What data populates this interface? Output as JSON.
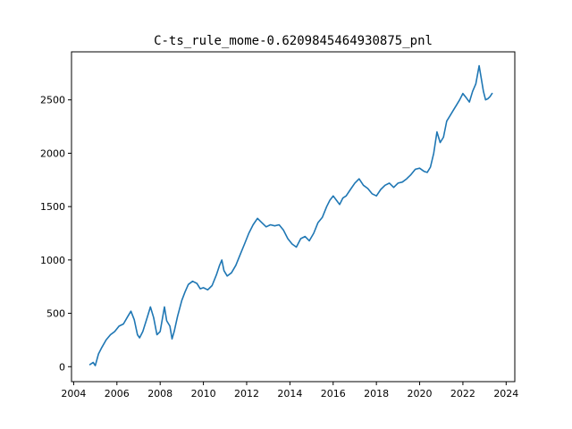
{
  "chart_data": {
    "type": "line",
    "title": "C-ts_rule_mome-0.6209845464930875_pnl",
    "xlabel": "",
    "ylabel": "",
    "grid": false,
    "xlim": [
      2003.9,
      2024.4
    ],
    "ylim": [
      -140,
      2950
    ],
    "x_ticks": [
      2004,
      2006,
      2008,
      2010,
      2012,
      2014,
      2016,
      2018,
      2020,
      2022,
      2024
    ],
    "y_ticks": [
      0,
      500,
      1000,
      1500,
      2000,
      2500
    ],
    "series": [
      {
        "color": "#1f77b4",
        "x": [
          2004.75,
          2004.9,
          2005.0,
          2005.15,
          2005.3,
          2005.5,
          2005.7,
          2005.9,
          2006.1,
          2006.3,
          2006.5,
          2006.65,
          2006.8,
          2006.95,
          2007.05,
          2007.2,
          2007.4,
          2007.55,
          2007.7,
          2007.85,
          2008.0,
          2008.2,
          2008.3,
          2008.45,
          2008.55,
          2008.65,
          2008.8,
          2009.0,
          2009.15,
          2009.3,
          2009.5,
          2009.7,
          2009.85,
          2010.0,
          2010.2,
          2010.4,
          2010.6,
          2010.75,
          2010.85,
          2010.95,
          2011.1,
          2011.3,
          2011.5,
          2011.7,
          2011.9,
          2012.1,
          2012.3,
          2012.5,
          2012.7,
          2012.9,
          2013.1,
          2013.3,
          2013.5,
          2013.7,
          2013.9,
          2014.1,
          2014.3,
          2014.5,
          2014.7,
          2014.9,
          2015.1,
          2015.3,
          2015.5,
          2015.7,
          2015.85,
          2016.0,
          2016.15,
          2016.3,
          2016.45,
          2016.6,
          2016.8,
          2017.0,
          2017.2,
          2017.4,
          2017.6,
          2017.8,
          2018.0,
          2018.2,
          2018.4,
          2018.6,
          2018.8,
          2019.0,
          2019.2,
          2019.4,
          2019.6,
          2019.8,
          2020.0,
          2020.2,
          2020.35,
          2020.5,
          2020.65,
          2020.8,
          2020.95,
          2021.1,
          2021.25,
          2021.4,
          2021.55,
          2021.7,
          2021.85,
          2022.0,
          2022.15,
          2022.3,
          2022.45,
          2022.6,
          2022.75,
          2022.85,
          2022.95,
          2023.05,
          2023.15,
          2023.25,
          2023.35
        ],
        "y": [
          20,
          40,
          10,
          120,
          180,
          250,
          300,
          330,
          380,
          400,
          470,
          520,
          440,
          300,
          270,
          330,
          460,
          560,
          460,
          300,
          330,
          560,
          430,
          380,
          260,
          330,
          470,
          620,
          700,
          770,
          800,
          780,
          730,
          740,
          720,
          760,
          860,
          950,
          1000,
          900,
          850,
          880,
          950,
          1050,
          1150,
          1250,
          1330,
          1390,
          1350,
          1310,
          1330,
          1320,
          1330,
          1280,
          1200,
          1150,
          1120,
          1200,
          1220,
          1180,
          1250,
          1350,
          1400,
          1500,
          1560,
          1600,
          1560,
          1520,
          1580,
          1600,
          1660,
          1720,
          1760,
          1700,
          1670,
          1620,
          1600,
          1660,
          1700,
          1720,
          1680,
          1720,
          1730,
          1760,
          1800,
          1850,
          1860,
          1830,
          1820,
          1870,
          2000,
          2200,
          2100,
          2150,
          2300,
          2350,
          2400,
          2450,
          2500,
          2560,
          2520,
          2480,
          2580,
          2650,
          2820,
          2700,
          2580,
          2500,
          2510,
          2530,
          2560
        ]
      }
    ]
  }
}
